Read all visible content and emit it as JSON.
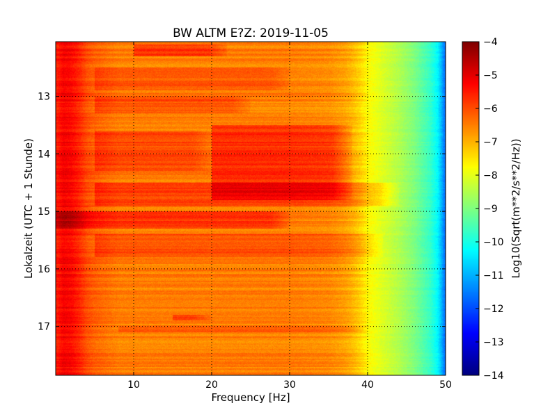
{
  "chart_data": {
    "type": "heatmap",
    "title": "BW ALTM E?Z: 2019-11-05",
    "xlabel": "Frequency [Hz]",
    "ylabel": "Lokalzeit (UTC + 1 Stunde)",
    "xlim": [
      0,
      50
    ],
    "ylim": [
      12.05,
      17.85
    ],
    "y_inverted": true,
    "x_ticks": [
      10,
      20,
      30,
      40,
      50
    ],
    "x_tick_labels": [
      "10",
      "20",
      "30",
      "40",
      "50"
    ],
    "y_ticks": [
      13,
      14,
      15,
      16,
      17
    ],
    "y_tick_labels": [
      "13",
      "14",
      "15",
      "16",
      "17"
    ],
    "grid": true,
    "colormap": "jet",
    "colorbar": {
      "label": "Log10(Sqrt(m**2/s**2/Hz))",
      "range": [
        -14,
        -4
      ],
      "ticks": [
        -4,
        -5,
        -6,
        -7,
        -8,
        -9,
        -10,
        -11,
        -12,
        -13,
        -14
      ],
      "tick_labels": [
        "−4",
        "−5",
        "−6",
        "−7",
        "−8",
        "−9",
        "−10",
        "−11",
        "−12",
        "−13",
        "−14"
      ]
    },
    "frequency_profile": {
      "freq_hz": [
        0,
        1,
        2,
        3,
        4,
        5,
        6,
        8,
        10,
        15,
        20,
        25,
        30,
        35,
        37,
        38,
        39,
        40,
        41,
        42,
        44,
        46,
        48,
        49,
        49.5,
        50
      ],
      "level": [
        -5.6,
        -5.2,
        -5.3,
        -5.6,
        -6.0,
        -6.2,
        -6.3,
        -6.5,
        -6.5,
        -6.5,
        -6.5,
        -6.5,
        -6.5,
        -6.6,
        -6.8,
        -7.0,
        -7.3,
        -7.7,
        -7.9,
        -8.1,
        -8.5,
        -9.0,
        -9.7,
        -10.3,
        -11.0,
        -11.8
      ]
    },
    "time_band_offsets": [
      {
        "y_from": 12.1,
        "y_to": 12.3,
        "f_from": 10,
        "f_to": 22,
        "delta": 0.7
      },
      {
        "y_from": 12.5,
        "y_to": 12.9,
        "f_from": 5,
        "f_to": 30,
        "delta": 0.4
      },
      {
        "y_from": 13.0,
        "y_to": 13.3,
        "f_from": 5,
        "f_to": 25,
        "delta": 0.5
      },
      {
        "y_from": 13.5,
        "y_to": 14.8,
        "f_from": 20,
        "f_to": 38,
        "delta": 0.8
      },
      {
        "y_from": 13.6,
        "y_to": 14.3,
        "f_from": 5,
        "f_to": 20,
        "delta": 0.5
      },
      {
        "y_from": 14.5,
        "y_to": 14.9,
        "f_from": 5,
        "f_to": 44,
        "delta": 0.6
      },
      {
        "y_from": 15.0,
        "y_to": 15.3,
        "f_from": 0,
        "f_to": 30,
        "delta": 0.7
      },
      {
        "y_from": 15.4,
        "y_to": 15.8,
        "f_from": 5,
        "f_to": 42,
        "delta": 0.5
      },
      {
        "y_from": 16.8,
        "y_to": 16.9,
        "f_from": 15,
        "f_to": 20,
        "delta": 0.6
      },
      {
        "y_from": 17.0,
        "y_to": 17.1,
        "f_from": 8,
        "f_to": 40,
        "delta": 0.4
      }
    ]
  }
}
